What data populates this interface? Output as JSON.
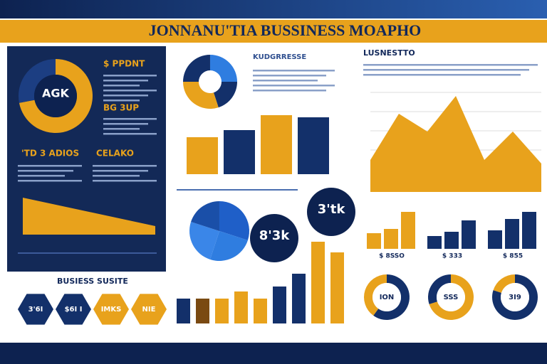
{
  "header": {
    "title": "JONNANU'TIA BUSSINESS MOAPHO"
  },
  "left_panel": {
    "donut_label": "AGK",
    "donut_values": [
      72,
      28
    ],
    "labels": [
      "$ PPDNT",
      "BG 3UP",
      "'TD 3 ADIOS",
      "CELAKO"
    ]
  },
  "top_bars": {
    "title": "KUDGRRESSE",
    "values": [
      52,
      62,
      83,
      80
    ]
  },
  "badges": [
    "8'3k",
    "3'tk"
  ],
  "bottom_bars": {
    "values": [
      35,
      35,
      35,
      45,
      35,
      52,
      70,
      115,
      100
    ]
  },
  "section_title": "BUSIESS SUSITE",
  "hexagons": [
    "3'6I",
    "$6I I",
    "IMKS",
    "NIE"
  ],
  "right_panel": {
    "title": "LUSNESTTO",
    "area": [
      45,
      110,
      85,
      135,
      45,
      85,
      40
    ],
    "mini_bars": [
      {
        "label": "$ 8SSO",
        "values": [
          22,
          28,
          52
        ]
      },
      {
        "label": "$ 333",
        "values": [
          18,
          24,
          40
        ]
      },
      {
        "label": "$ 855",
        "values": [
          26,
          42,
          52
        ]
      }
    ],
    "donuts": [
      {
        "label": "ION",
        "value": 60
      },
      {
        "label": "SSS",
        "value": 70
      },
      {
        "label": "3I9",
        "value": 80
      }
    ]
  }
}
